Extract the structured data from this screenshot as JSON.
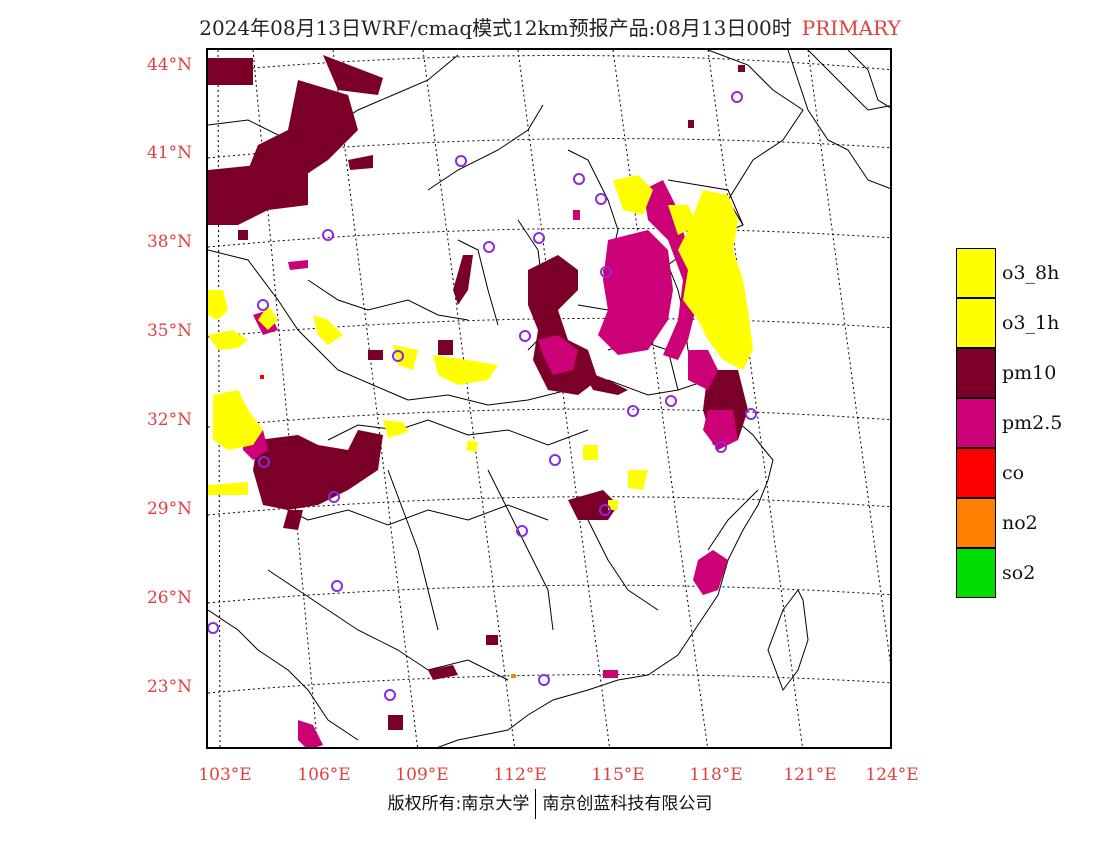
{
  "header": {
    "title": "2024年08月13日WRF/cmaq模式12km预报产品:08月13日00时",
    "tag": "PRIMARY"
  },
  "axes": {
    "latitude_labels": [
      "44°N",
      "41°N",
      "38°N",
      "35°N",
      "32°N",
      "29°N",
      "26°N",
      "23°N"
    ],
    "longitude_labels": [
      "103°E",
      "106°E",
      "109°E",
      "112°E",
      "115°E",
      "118°E",
      "121°E",
      "124°E"
    ]
  },
  "legend": {
    "items": [
      {
        "label": "o3_8h",
        "color": "#ffff00"
      },
      {
        "label": "o3_1h",
        "color": "#ffff00"
      },
      {
        "label": "pm10",
        "color": "#7a0028"
      },
      {
        "label": "pm2.5",
        "color": "#cc0077"
      },
      {
        "label": "co",
        "color": "#ff0000"
      },
      {
        "label": "no2",
        "color": "#ff8000"
      },
      {
        "label": "so2",
        "color": "#00dd00"
      }
    ]
  },
  "colors": {
    "pm10": "#7a0028",
    "pm25": "#cc0077",
    "o3": "#ffff00",
    "station": "#8a2be2",
    "axis_label": "#e04040"
  },
  "footer": {
    "left": "版权所有:南京大学",
    "right": "南京创蓝科技有限公司"
  }
}
